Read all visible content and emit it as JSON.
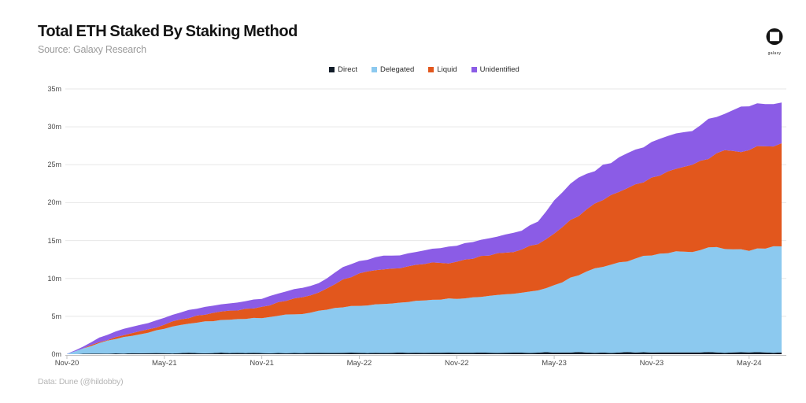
{
  "header": {
    "title": "Total ETH Staked By Staking Method",
    "subtitle": "Source: Galaxy Research",
    "logo_text": "galaxy"
  },
  "footer": {
    "credit": "Data: Dune (@hildobby)"
  },
  "colors": {
    "direct": "#111c28",
    "delegated": "#8cc9ef",
    "liquid": "#e2571d",
    "unidentified": "#8b5ce6",
    "gridline": "#e7e7e7",
    "axis": "#c2c2c2",
    "tick_text": "#4a4a4a"
  },
  "chart_data": {
    "type": "area",
    "stacked": true,
    "title": "Total ETH Staked By Staking Method",
    "unit": "millions of ETH",
    "grid": "horizontal",
    "legend_position": "top-center",
    "ylim": [
      0,
      35
    ],
    "y_tick_labels": [
      "0m",
      "5m",
      "10m",
      "15m",
      "20m",
      "25m",
      "30m",
      "35m"
    ],
    "x": [
      "Nov-20",
      "Dec-20",
      "Jan-21",
      "Feb-21",
      "Mar-21",
      "Apr-21",
      "May-21",
      "Jun-21",
      "Jul-21",
      "Aug-21",
      "Sep-21",
      "Oct-21",
      "Nov-21",
      "Dec-21",
      "Jan-22",
      "Feb-22",
      "Mar-22",
      "Apr-22",
      "May-22",
      "Jun-22",
      "Jul-22",
      "Aug-22",
      "Sep-22",
      "Oct-22",
      "Nov-22",
      "Dec-22",
      "Jan-23",
      "Feb-23",
      "Mar-23",
      "Apr-23",
      "May-23",
      "Jun-23",
      "Jul-23",
      "Aug-23",
      "Sep-23",
      "Oct-23",
      "Nov-23",
      "Dec-23",
      "Jan-24",
      "Feb-24",
      "Mar-24",
      "Apr-24",
      "May-24",
      "Jun-24",
      "Jul-24"
    ],
    "x_tick_indices": [
      0,
      6,
      12,
      18,
      24,
      30,
      36,
      42
    ],
    "x_tick_labels": [
      "Nov-20",
      "May-21",
      "Nov-21",
      "May-22",
      "Nov-22",
      "May-23",
      "Nov-23",
      "May-24"
    ],
    "series": [
      {
        "name": "Direct",
        "color": "#111c28",
        "values": [
          0.01,
          0.05,
          0.08,
          0.1,
          0.12,
          0.13,
          0.14,
          0.15,
          0.15,
          0.15,
          0.15,
          0.15,
          0.15,
          0.16,
          0.16,
          0.17,
          0.17,
          0.18,
          0.18,
          0.18,
          0.19,
          0.19,
          0.19,
          0.2,
          0.2,
          0.2,
          0.2,
          0.2,
          0.21,
          0.21,
          0.21,
          0.22,
          0.22,
          0.22,
          0.22,
          0.22,
          0.22,
          0.23,
          0.23,
          0.23,
          0.23,
          0.23,
          0.23,
          0.23,
          0.23
        ]
      },
      {
        "name": "Delegated",
        "color": "#8cc9ef",
        "values": [
          0.03,
          0.7,
          1.4,
          1.9,
          2.3,
          2.7,
          3.2,
          3.7,
          4.0,
          4.2,
          4.4,
          4.5,
          4.6,
          4.9,
          5.1,
          5.3,
          5.7,
          6.0,
          6.2,
          6.4,
          6.5,
          6.7,
          6.9,
          7.0,
          7.1,
          7.3,
          7.5,
          7.7,
          7.9,
          8.2,
          8.9,
          9.9,
          10.7,
          11.3,
          11.9,
          12.4,
          12.8,
          13.1,
          13.3,
          13.5,
          13.9,
          13.6,
          13.4,
          13.7,
          14.0
        ]
      },
      {
        "name": "Liquid",
        "color": "#e2571d",
        "values": [
          0.0,
          0.02,
          0.12,
          0.25,
          0.35,
          0.45,
          0.55,
          0.75,
          0.95,
          1.1,
          1.2,
          1.35,
          1.5,
          1.8,
          2.1,
          2.3,
          2.8,
          3.7,
          4.3,
          4.5,
          4.6,
          4.7,
          4.8,
          4.85,
          4.9,
          5.1,
          5.3,
          5.5,
          5.7,
          6.1,
          6.8,
          7.6,
          8.2,
          8.8,
          9.3,
          9.8,
          10.3,
          10.8,
          11.2,
          11.8,
          12.4,
          13.0,
          13.3,
          13.5,
          13.6
        ]
      },
      {
        "name": "Unidentified",
        "color": "#8b5ce6",
        "values": [
          0.01,
          0.23,
          0.6,
          0.75,
          0.83,
          0.82,
          0.91,
          0.9,
          0.9,
          0.95,
          0.95,
          1.0,
          1.05,
          1.14,
          1.24,
          1.23,
          1.33,
          1.62,
          1.62,
          1.72,
          1.71,
          1.71,
          1.81,
          1.95,
          2.1,
          2.2,
          2.3,
          2.4,
          2.49,
          2.99,
          4.39,
          4.78,
          4.68,
          4.68,
          4.58,
          4.58,
          4.68,
          4.67,
          4.57,
          4.67,
          4.77,
          5.37,
          5.77,
          5.57,
          5.37
        ]
      }
    ]
  }
}
